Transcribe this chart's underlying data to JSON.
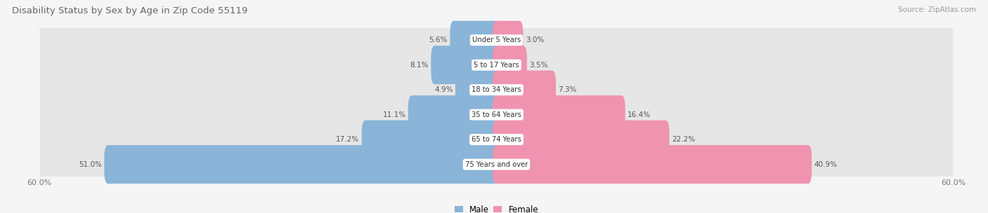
{
  "title": "Disability Status by Sex by Age in Zip Code 55119",
  "source": "Source: ZipAtlas.com",
  "categories": [
    "Under 5 Years",
    "5 to 17 Years",
    "18 to 34 Years",
    "35 to 64 Years",
    "65 to 74 Years",
    "75 Years and over"
  ],
  "male_values": [
    5.6,
    8.1,
    4.9,
    11.1,
    17.2,
    51.0
  ],
  "female_values": [
    3.0,
    3.5,
    7.3,
    16.4,
    22.2,
    40.9
  ],
  "male_color": "#8ab4d8",
  "female_color": "#f093b0",
  "axis_max": 60.0,
  "bg_color": "#f5f5f5",
  "row_bg_color": "#e6e6e6",
  "title_color": "#666666",
  "bar_height": 0.55,
  "legend_male": "Male",
  "legend_female": "Female"
}
